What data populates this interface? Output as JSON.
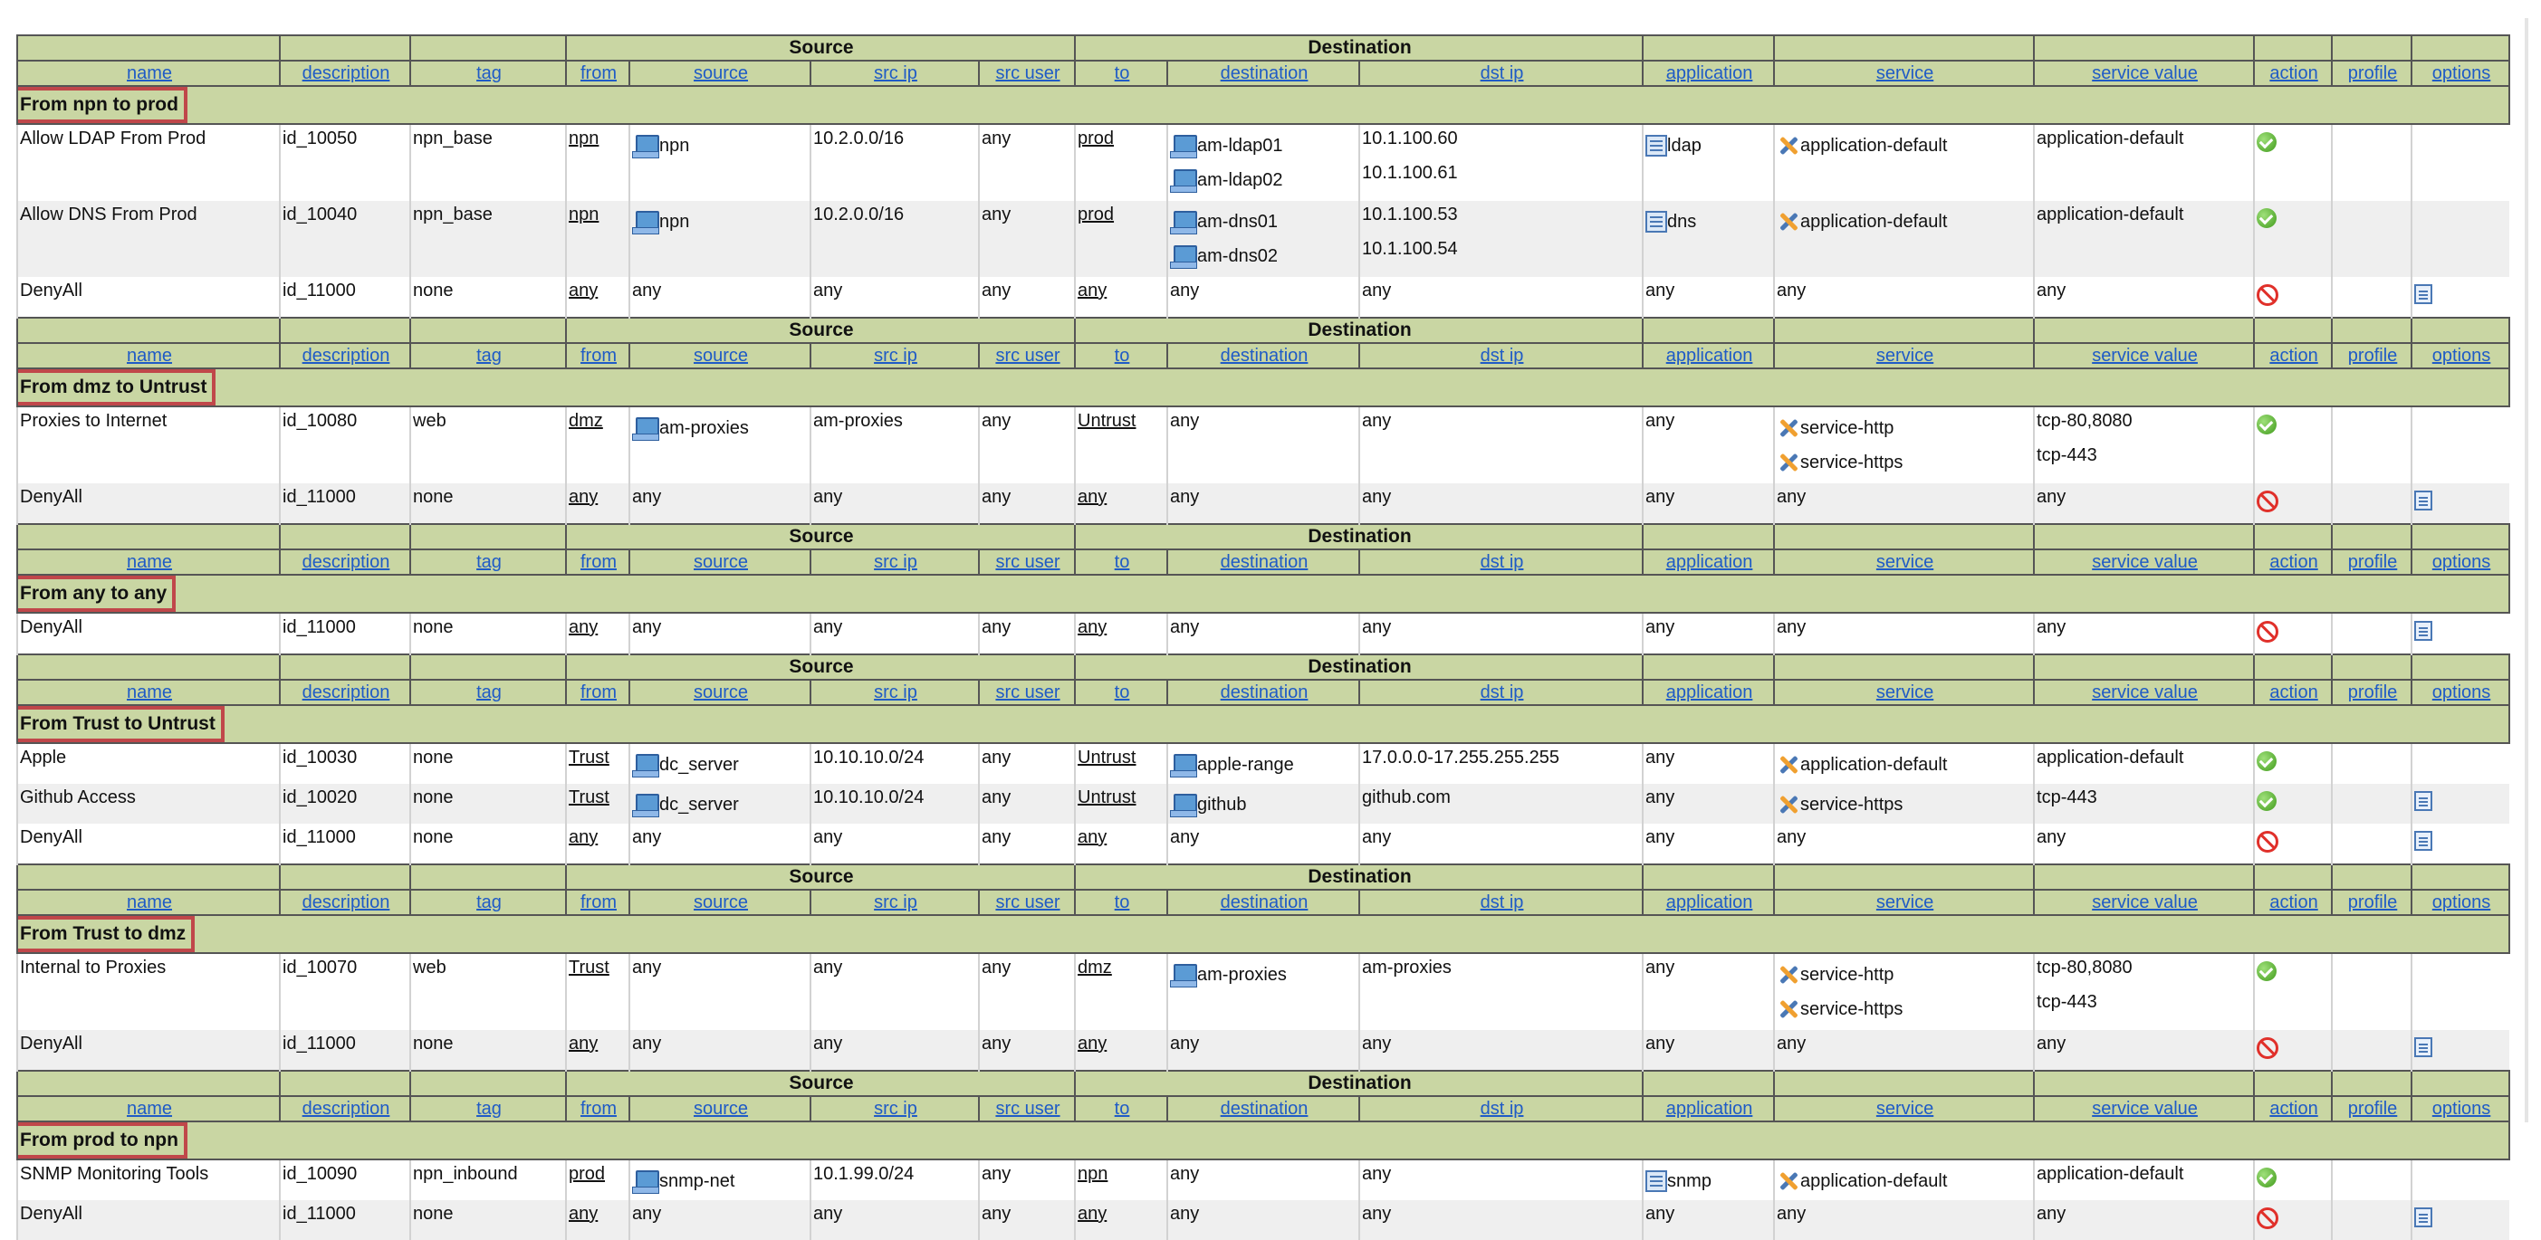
{
  "headers": {
    "group_source": "Source",
    "group_destination": "Destination",
    "columns": [
      "name",
      "description",
      "tag",
      "from",
      "source",
      "src ip",
      "src user",
      "to",
      "destination",
      "dst ip",
      "application",
      "service",
      "service value",
      "action",
      "profile",
      "options"
    ]
  },
  "colors": {
    "header_bg": "#c9d6a3",
    "section_highlight": "#c0474a",
    "link": "#1f5bc6",
    "row_alt": "#efefef"
  },
  "sections": [
    {
      "title": "From npn to prod",
      "rules": [
        {
          "name": "Allow LDAP From Prod",
          "description": "id_10050",
          "tag": "npn_base",
          "from": "npn",
          "source": [
            "npn"
          ],
          "src_ip": [
            "10.2.0.0/16"
          ],
          "src_user": "any",
          "to": "prod",
          "destination": [
            "am-ldap01",
            "am-ldap02"
          ],
          "dst_ip": [
            "10.1.100.60",
            "10.1.100.61"
          ],
          "application": [
            "ldap"
          ],
          "service": [
            "application-default"
          ],
          "service_value": [
            "application-default"
          ],
          "action": "allow",
          "options": false
        },
        {
          "name": "Allow DNS From Prod",
          "description": "id_10040",
          "tag": "npn_base",
          "from": "npn",
          "source": [
            "npn"
          ],
          "src_ip": [
            "10.2.0.0/16"
          ],
          "src_user": "any",
          "to": "prod",
          "destination": [
            "am-dns01",
            "am-dns02"
          ],
          "dst_ip": [
            "10.1.100.53",
            "10.1.100.54"
          ],
          "application": [
            "dns"
          ],
          "service": [
            "application-default"
          ],
          "service_value": [
            "application-default"
          ],
          "action": "allow",
          "options": false
        },
        {
          "name": "DenyAll",
          "description": "id_11000",
          "tag": "none",
          "from": "any",
          "source": [
            "any"
          ],
          "src_ip": [
            "any"
          ],
          "src_user": "any",
          "to": "any",
          "destination": [
            "any"
          ],
          "dst_ip": [
            "any"
          ],
          "application": [
            "any"
          ],
          "service": [
            "any"
          ],
          "service_value": [
            "any"
          ],
          "action": "deny",
          "options": true
        }
      ]
    },
    {
      "title": "From dmz to Untrust",
      "rules": [
        {
          "name": "Proxies to Internet",
          "description": "id_10080",
          "tag": "web",
          "from": "dmz",
          "source": [
            "am-proxies"
          ],
          "src_ip": [
            "am-proxies"
          ],
          "src_user": "any",
          "to": "Untrust",
          "destination": [
            "any"
          ],
          "dst_ip": [
            "any"
          ],
          "application": [
            "any"
          ],
          "service": [
            "service-http",
            "service-https"
          ],
          "service_value": [
            "tcp-80,8080",
            "tcp-443"
          ],
          "action": "allow",
          "options": false
        },
        {
          "name": "DenyAll",
          "description": "id_11000",
          "tag": "none",
          "from": "any",
          "source": [
            "any"
          ],
          "src_ip": [
            "any"
          ],
          "src_user": "any",
          "to": "any",
          "destination": [
            "any"
          ],
          "dst_ip": [
            "any"
          ],
          "application": [
            "any"
          ],
          "service": [
            "any"
          ],
          "service_value": [
            "any"
          ],
          "action": "deny",
          "options": true
        }
      ]
    },
    {
      "title": "From any to any",
      "rules": [
        {
          "name": "DenyAll",
          "description": "id_11000",
          "tag": "none",
          "from": "any",
          "source": [
            "any"
          ],
          "src_ip": [
            "any"
          ],
          "src_user": "any",
          "to": "any",
          "destination": [
            "any"
          ],
          "dst_ip": [
            "any"
          ],
          "application": [
            "any"
          ],
          "service": [
            "any"
          ],
          "service_value": [
            "any"
          ],
          "action": "deny",
          "options": true
        }
      ]
    },
    {
      "title": "From Trust to Untrust",
      "rules": [
        {
          "name": "Apple",
          "description": "id_10030",
          "tag": "none",
          "from": "Trust",
          "source": [
            "dc_server"
          ],
          "src_ip": [
            "10.10.10.0/24"
          ],
          "src_user": "any",
          "to": "Untrust",
          "destination": [
            "apple-range"
          ],
          "dst_ip": [
            "17.0.0.0-17.255.255.255"
          ],
          "application": [
            "any"
          ],
          "service": [
            "application-default"
          ],
          "service_value": [
            "application-default"
          ],
          "action": "allow",
          "options": false
        },
        {
          "name": "Github Access",
          "description": "id_10020",
          "tag": "none",
          "from": "Trust",
          "source": [
            "dc_server"
          ],
          "src_ip": [
            "10.10.10.0/24"
          ],
          "src_user": "any",
          "to": "Untrust",
          "destination": [
            "github"
          ],
          "dst_ip": [
            "github.com"
          ],
          "application": [
            "any"
          ],
          "service": [
            "service-https"
          ],
          "service_value": [
            "tcp-443"
          ],
          "action": "allow",
          "options": true
        },
        {
          "name": "DenyAll",
          "description": "id_11000",
          "tag": "none",
          "from": "any",
          "source": [
            "any"
          ],
          "src_ip": [
            "any"
          ],
          "src_user": "any",
          "to": "any",
          "destination": [
            "any"
          ],
          "dst_ip": [
            "any"
          ],
          "application": [
            "any"
          ],
          "service": [
            "any"
          ],
          "service_value": [
            "any"
          ],
          "action": "deny",
          "options": true
        }
      ]
    },
    {
      "title": "From Trust to dmz",
      "rules": [
        {
          "name": "Internal to Proxies",
          "description": "id_10070",
          "tag": "web",
          "from": "Trust",
          "source": [
            "any"
          ],
          "src_ip": [
            "any"
          ],
          "src_user": "any",
          "to": "dmz",
          "destination": [
            "am-proxies"
          ],
          "dst_ip": [
            "am-proxies"
          ],
          "application": [
            "any"
          ],
          "service": [
            "service-http",
            "service-https"
          ],
          "service_value": [
            "tcp-80,8080",
            "tcp-443"
          ],
          "action": "allow",
          "options": false
        },
        {
          "name": "DenyAll",
          "description": "id_11000",
          "tag": "none",
          "from": "any",
          "source": [
            "any"
          ],
          "src_ip": [
            "any"
          ],
          "src_user": "any",
          "to": "any",
          "destination": [
            "any"
          ],
          "dst_ip": [
            "any"
          ],
          "application": [
            "any"
          ],
          "service": [
            "any"
          ],
          "service_value": [
            "any"
          ],
          "action": "deny",
          "options": true
        }
      ]
    },
    {
      "title": "From prod to npn",
      "rules": [
        {
          "name": "SNMP Monitoring Tools",
          "description": "id_10090",
          "tag": "npn_inbound",
          "from": "prod",
          "source": [
            "snmp-net"
          ],
          "src_ip": [
            "10.1.99.0/24"
          ],
          "src_user": "any",
          "to": "npn",
          "destination": [
            "any"
          ],
          "dst_ip": [
            "any"
          ],
          "application": [
            "snmp"
          ],
          "service": [
            "application-default"
          ],
          "service_value": [
            "application-default"
          ],
          "action": "allow",
          "options": false
        },
        {
          "name": "DenyAll",
          "description": "id_11000",
          "tag": "none",
          "from": "any",
          "source": [
            "any"
          ],
          "src_ip": [
            "any"
          ],
          "src_user": "any",
          "to": "any",
          "destination": [
            "any"
          ],
          "dst_ip": [
            "any"
          ],
          "application": [
            "any"
          ],
          "service": [
            "any"
          ],
          "service_value": [
            "any"
          ],
          "action": "deny",
          "options": true
        }
      ]
    }
  ]
}
